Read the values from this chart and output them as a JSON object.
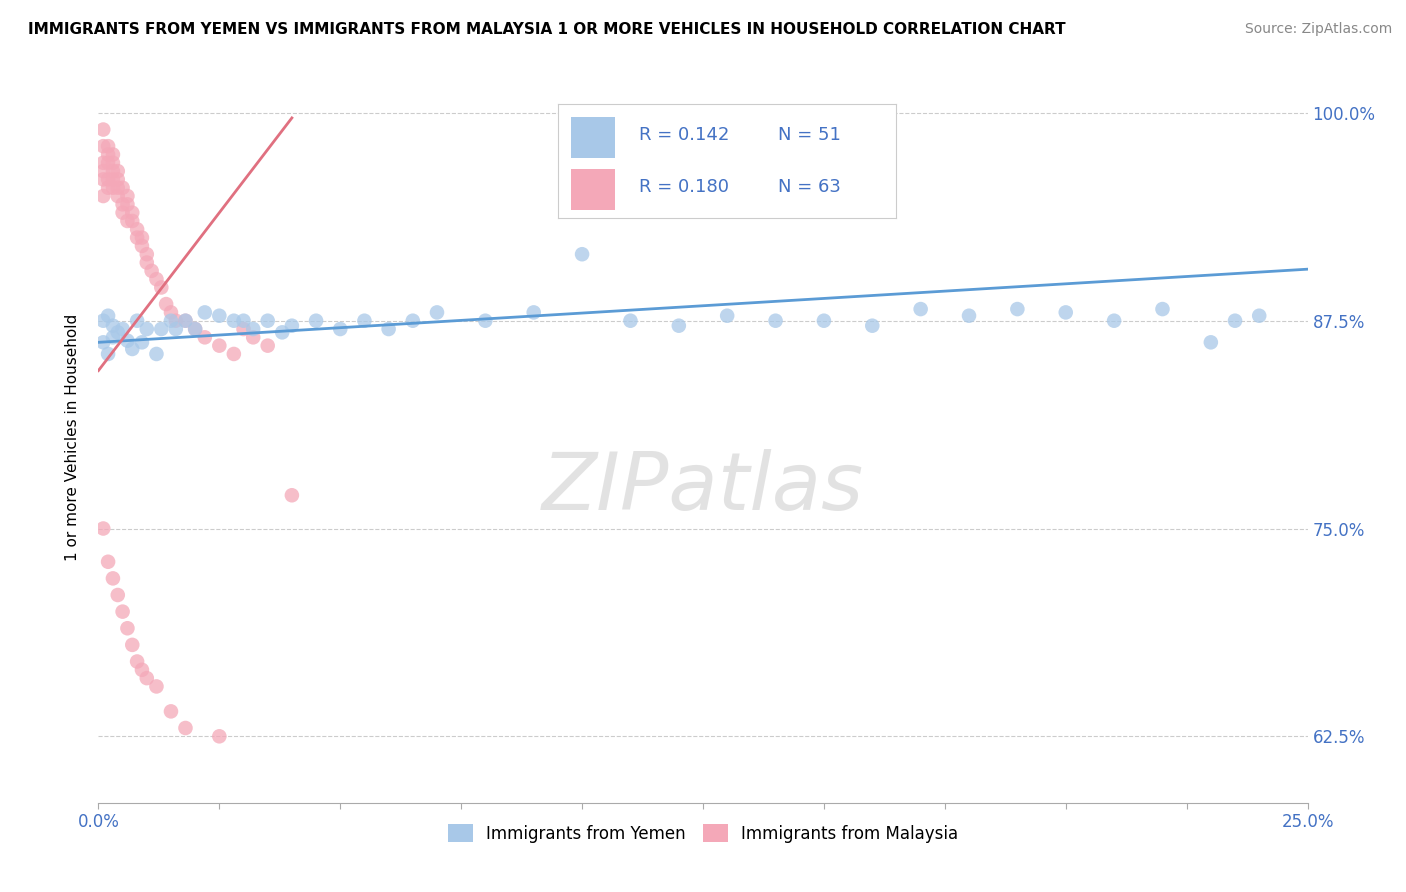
{
  "title": "IMMIGRANTS FROM YEMEN VS IMMIGRANTS FROM MALAYSIA 1 OR MORE VEHICLES IN HOUSEHOLD CORRELATION CHART",
  "source": "Source: ZipAtlas.com",
  "ylabel": "1 or more Vehicles in Household",
  "xlim": [
    0.0,
    0.25
  ],
  "ylim": [
    0.585,
    1.025
  ],
  "xticks": [
    0.0,
    0.025,
    0.05,
    0.075,
    0.1,
    0.125,
    0.15,
    0.175,
    0.2,
    0.225,
    0.25
  ],
  "xticklabels": [
    "0.0%",
    "",
    "",
    "",
    "",
    "",
    "",
    "",
    "",
    "",
    "25.0%"
  ],
  "yticks": [
    0.625,
    0.75,
    0.875,
    1.0
  ],
  "yticklabels": [
    "62.5%",
    "75.0%",
    "87.5%",
    "100.0%"
  ],
  "yemen_color": "#a8c8e8",
  "malaysia_color": "#f4a8b8",
  "yemen_line_color": "#5b9bd5",
  "malaysia_line_color": "#e07080",
  "R_yemen": 0.142,
  "N_yemen": 51,
  "R_malaysia": 0.18,
  "N_malaysia": 63,
  "legend_label_yemen": "Immigrants from Yemen",
  "legend_label_malaysia": "Immigrants from Malaysia",
  "watermark": "ZIPatlas",
  "background_color": "#ffffff",
  "yemen_scatter_x": [
    0.001,
    0.001,
    0.002,
    0.002,
    0.003,
    0.003,
    0.004,
    0.005,
    0.006,
    0.007,
    0.008,
    0.009,
    0.01,
    0.012,
    0.013,
    0.015,
    0.016,
    0.018,
    0.02,
    0.022,
    0.025,
    0.028,
    0.03,
    0.032,
    0.035,
    0.038,
    0.04,
    0.045,
    0.05,
    0.055,
    0.06,
    0.065,
    0.07,
    0.08,
    0.09,
    0.1,
    0.11,
    0.12,
    0.13,
    0.14,
    0.15,
    0.16,
    0.17,
    0.18,
    0.19,
    0.2,
    0.21,
    0.22,
    0.23,
    0.235,
    0.24
  ],
  "yemen_scatter_y": [
    0.875,
    0.862,
    0.878,
    0.855,
    0.865,
    0.872,
    0.868,
    0.87,
    0.863,
    0.858,
    0.875,
    0.862,
    0.87,
    0.855,
    0.87,
    0.875,
    0.87,
    0.875,
    0.87,
    0.88,
    0.878,
    0.875,
    0.875,
    0.87,
    0.875,
    0.868,
    0.872,
    0.875,
    0.87,
    0.875,
    0.87,
    0.875,
    0.88,
    0.875,
    0.88,
    0.915,
    0.875,
    0.872,
    0.878,
    0.875,
    0.875,
    0.872,
    0.882,
    0.878,
    0.882,
    0.88,
    0.875,
    0.882,
    0.862,
    0.875,
    0.878
  ],
  "malaysia_scatter_x": [
    0.001,
    0.001,
    0.001,
    0.001,
    0.001,
    0.001,
    0.002,
    0.002,
    0.002,
    0.002,
    0.002,
    0.003,
    0.003,
    0.003,
    0.003,
    0.003,
    0.004,
    0.004,
    0.004,
    0.004,
    0.005,
    0.005,
    0.005,
    0.006,
    0.006,
    0.006,
    0.007,
    0.007,
    0.008,
    0.008,
    0.009,
    0.009,
    0.01,
    0.01,
    0.011,
    0.012,
    0.013,
    0.014,
    0.015,
    0.016,
    0.018,
    0.02,
    0.022,
    0.025,
    0.028,
    0.03,
    0.032,
    0.035,
    0.001,
    0.002,
    0.003,
    0.004,
    0.005,
    0.006,
    0.007,
    0.008,
    0.009,
    0.01,
    0.012,
    0.015,
    0.018,
    0.025,
    0.04
  ],
  "malaysia_scatter_y": [
    0.97,
    0.98,
    0.99,
    0.96,
    0.95,
    0.965,
    0.975,
    0.98,
    0.97,
    0.96,
    0.955,
    0.975,
    0.97,
    0.965,
    0.96,
    0.955,
    0.965,
    0.96,
    0.955,
    0.95,
    0.955,
    0.945,
    0.94,
    0.95,
    0.945,
    0.935,
    0.94,
    0.935,
    0.93,
    0.925,
    0.925,
    0.92,
    0.915,
    0.91,
    0.905,
    0.9,
    0.895,
    0.885,
    0.88,
    0.875,
    0.875,
    0.87,
    0.865,
    0.86,
    0.855,
    0.87,
    0.865,
    0.86,
    0.75,
    0.73,
    0.72,
    0.71,
    0.7,
    0.69,
    0.68,
    0.67,
    0.665,
    0.66,
    0.655,
    0.64,
    0.63,
    0.625,
    0.77
  ],
  "yemen_line_x": [
    0.0,
    0.25
  ],
  "yemen_line_y": [
    0.862,
    0.906
  ],
  "malaysia_line_x": [
    0.0,
    0.04
  ],
  "malaysia_line_y": [
    0.845,
    0.997
  ]
}
